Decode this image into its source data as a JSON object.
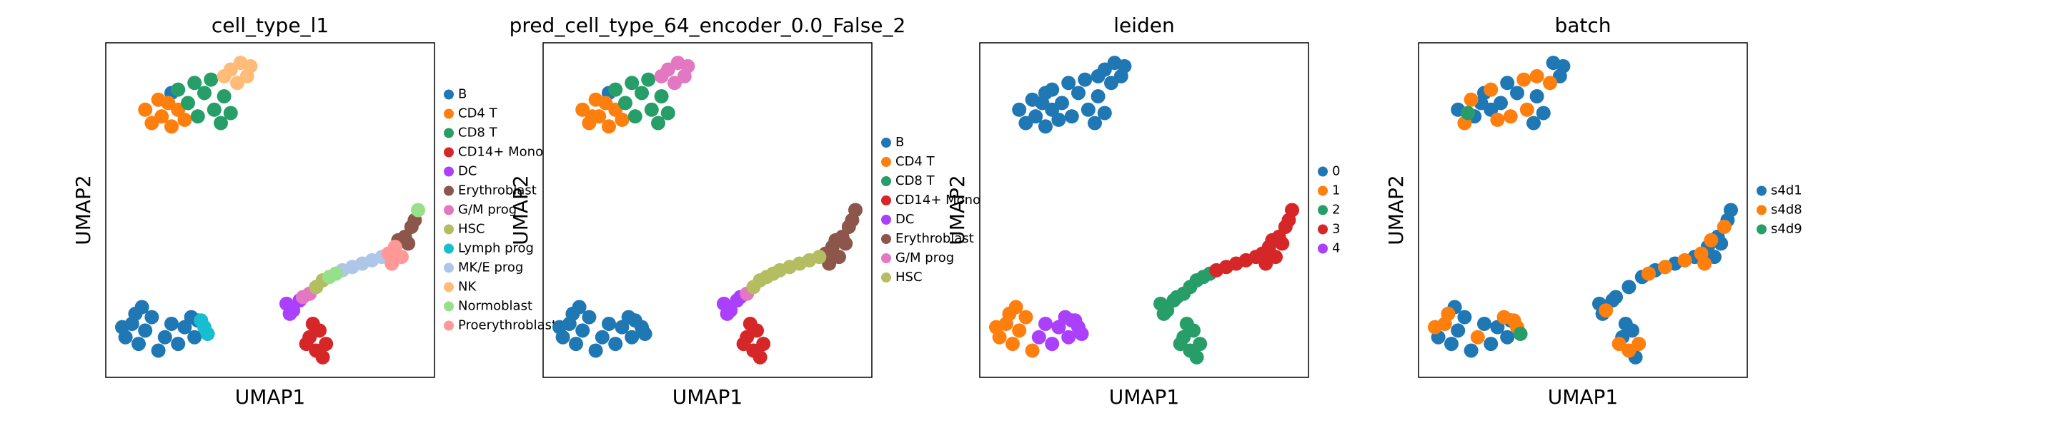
{
  "chart_data": [
    {
      "type": "scatter",
      "title": "cell_type_l1",
      "xlabel": "UMAP1",
      "ylabel": "UMAP2",
      "xlim": [
        0,
        100
      ],
      "ylim": [
        0,
        100
      ],
      "series": [
        {
          "name": "B",
          "color": "#1f77b4",
          "x": [
            20,
            6,
            8,
            10,
            12,
            9,
            14,
            18,
            22,
            24,
            27,
            26,
            20,
            16,
            28,
            5,
            11
          ],
          "y": [
            85,
            12,
            16,
            10,
            14,
            19,
            18,
            12,
            10,
            15,
            12,
            18,
            16,
            8,
            17,
            15,
            21
          ]
        },
        {
          "name": "CD4 T",
          "color": "#ff7f0e",
          "x": [
            12,
            14,
            17,
            20,
            22,
            16,
            19,
            24
          ],
          "y": [
            80,
            76,
            78,
            75,
            80,
            83,
            82,
            77
          ]
        },
        {
          "name": "CD8 T",
          "color": "#279e68",
          "x": [
            25,
            28,
            30,
            33,
            36,
            27,
            32,
            38,
            22,
            35
          ],
          "y": [
            82,
            78,
            85,
            80,
            84,
            88,
            89,
            79,
            86,
            76
          ]
        },
        {
          "name": "CD14+ Mono",
          "color": "#d62728",
          "x": [
            62,
            64,
            66,
            65,
            67,
            63,
            61
          ],
          "y": [
            12,
            8,
            6,
            14,
            10,
            16,
            10
          ]
        },
        {
          "name": "DC",
          "color": "#aa40fc",
          "x": [
            55,
            57,
            59,
            56
          ],
          "y": [
            22,
            20,
            23,
            19
          ]
        },
        {
          "name": "Erythroblast",
          "color": "#8c564b",
          "x": [
            91,
            93,
            92,
            94,
            89
          ],
          "y": [
            42,
            45,
            40,
            47,
            41
          ]
        },
        {
          "name": "G/M prog",
          "color": "#e377c2",
          "x": [
            60,
            62
          ],
          "y": [
            24,
            25
          ]
        },
        {
          "name": "HSC",
          "color": "#b5bd61",
          "x": [
            64,
            66
          ],
          "y": [
            27,
            29
          ]
        },
        {
          "name": "Lymph prog",
          "color": "#17becf",
          "x": [
            30,
            31,
            29
          ],
          "y": [
            15,
            13,
            17
          ]
        },
        {
          "name": "MK/E prog",
          "color": "#aec7e8",
          "x": [
            72,
            75,
            78,
            81,
            84
          ],
          "y": [
            32,
            33,
            34,
            35,
            36
          ]
        },
        {
          "name": "NK",
          "color": "#ffbb78",
          "x": [
            38,
            41,
            43,
            40,
            44,
            36
          ],
          "y": [
            92,
            94,
            90,
            88,
            93,
            90
          ]
        },
        {
          "name": "Normoblast",
          "color": "#98df8a",
          "x": [
            68,
            70,
            95
          ],
          "y": [
            30,
            31,
            50
          ]
        },
        {
          "name": "Proerythroblast",
          "color": "#ff9896",
          "x": [
            86,
            88,
            90,
            87
          ],
          "y": [
            37,
            39,
            36,
            34
          ]
        }
      ]
    },
    {
      "type": "scatter",
      "title": "pred_cell_type_64_encoder_0.0_False_2",
      "xlabel": "UMAP1",
      "ylabel": "UMAP2",
      "xlim": [
        0,
        100
      ],
      "ylim": [
        0,
        100
      ],
      "series": [
        {
          "name": "B",
          "color": "#1f77b4",
          "x": [
            20,
            6,
            8,
            10,
            12,
            9,
            14,
            18,
            22,
            24,
            27,
            26,
            20,
            16,
            28,
            5,
            11,
            30,
            31
          ],
          "y": [
            85,
            12,
            16,
            10,
            14,
            19,
            18,
            12,
            10,
            15,
            12,
            18,
            16,
            8,
            17,
            15,
            21,
            15,
            13
          ]
        },
        {
          "name": "CD4 T",
          "color": "#ff7f0e",
          "x": [
            12,
            14,
            17,
            20,
            22,
            16,
            19,
            24,
            15
          ],
          "y": [
            80,
            76,
            78,
            75,
            80,
            83,
            82,
            77,
            78
          ]
        },
        {
          "name": "CD8 T",
          "color": "#279e68",
          "x": [
            25,
            28,
            30,
            33,
            36,
            27,
            32,
            38,
            22,
            35
          ],
          "y": [
            82,
            78,
            85,
            80,
            84,
            88,
            89,
            79,
            86,
            76
          ]
        },
        {
          "name": "CD14+ Mono",
          "color": "#d62728",
          "x": [
            62,
            64,
            66,
            65,
            67,
            63,
            61
          ],
          "y": [
            12,
            8,
            6,
            14,
            10,
            16,
            10
          ]
        },
        {
          "name": "DC",
          "color": "#aa40fc",
          "x": [
            55,
            57,
            59,
            56,
            60
          ],
          "y": [
            22,
            20,
            23,
            19,
            24
          ]
        },
        {
          "name": "Erythroblast",
          "color": "#8c564b",
          "x": [
            91,
            93,
            92,
            94,
            89,
            86,
            88,
            90,
            87,
            95
          ],
          "y": [
            42,
            45,
            40,
            47,
            41,
            37,
            39,
            36,
            34,
            50
          ]
        },
        {
          "name": "G/M prog",
          "color": "#e377c2",
          "x": [
            38,
            41,
            43,
            40,
            44,
            36,
            62
          ],
          "y": [
            92,
            94,
            90,
            88,
            93,
            90,
            25
          ]
        },
        {
          "name": "HSC",
          "color": "#b5bd61",
          "x": [
            64,
            66,
            68,
            70,
            72,
            75,
            78,
            81,
            84
          ],
          "y": [
            27,
            29,
            30,
            31,
            32,
            33,
            34,
            35,
            36
          ]
        }
      ]
    },
    {
      "type": "scatter",
      "title": "leiden",
      "xlabel": "UMAP1",
      "ylabel": "UMAP2",
      "xlim": [
        0,
        100
      ],
      "ylim": [
        0,
        100
      ],
      "series": [
        {
          "name": "0",
          "color": "#1f77b4",
          "x": [
            20,
            12,
            14,
            17,
            20,
            22,
            16,
            19,
            24,
            25,
            28,
            30,
            33,
            36,
            27,
            32,
            38,
            22,
            35,
            38,
            41,
            43,
            40,
            44,
            36
          ],
          "y": [
            85,
            80,
            76,
            78,
            75,
            80,
            83,
            82,
            77,
            82,
            78,
            85,
            80,
            84,
            88,
            89,
            79,
            86,
            76,
            92,
            94,
            90,
            88,
            93,
            90
          ]
        },
        {
          "name": "1",
          "color": "#ff7f0e",
          "x": [
            6,
            8,
            10,
            12,
            9,
            14,
            16,
            5,
            11
          ],
          "y": [
            12,
            16,
            10,
            14,
            19,
            18,
            8,
            15,
            21
          ]
        },
        {
          "name": "2",
          "color": "#279e68",
          "x": [
            62,
            64,
            66,
            65,
            67,
            63,
            61,
            55,
            57,
            59,
            56,
            60,
            62,
            64,
            66,
            68,
            70
          ],
          "y": [
            12,
            8,
            6,
            14,
            10,
            16,
            10,
            22,
            20,
            23,
            19,
            24,
            25,
            27,
            29,
            30,
            31
          ]
        },
        {
          "name": "3",
          "color": "#d62728",
          "x": [
            72,
            75,
            78,
            81,
            84,
            86,
            88,
            90,
            87,
            91,
            93,
            92,
            94,
            89,
            95
          ],
          "y": [
            32,
            33,
            34,
            35,
            36,
            37,
            39,
            36,
            34,
            42,
            45,
            40,
            47,
            41,
            50
          ]
        },
        {
          "name": "4",
          "color": "#aa40fc",
          "x": [
            18,
            22,
            24,
            27,
            26,
            20,
            28,
            30,
            31,
            29
          ],
          "y": [
            12,
            10,
            15,
            12,
            18,
            16,
            17,
            15,
            13,
            17
          ]
        }
      ]
    },
    {
      "type": "scatter",
      "title": "batch",
      "xlabel": "UMAP1",
      "ylabel": "UMAP2",
      "xlim": [
        0,
        100
      ],
      "ylim": [
        0,
        100
      ],
      "series": [
        {
          "name": "s4d1",
          "color": "#1f77b4",
          "x": [
            20,
            12,
            17,
            22,
            19,
            25,
            30,
            36,
            27,
            38,
            35,
            41,
            43,
            44,
            6,
            10,
            12,
            14,
            22,
            24,
            27,
            20,
            16,
            28,
            11,
            62,
            66,
            65,
            63,
            55,
            59,
            56,
            60,
            64,
            68,
            72,
            78,
            84,
            88,
            90,
            91,
            92,
            94,
            95
          ],
          "y": [
            85,
            80,
            78,
            80,
            82,
            82,
            85,
            84,
            88,
            79,
            76,
            94,
            90,
            93,
            12,
            10,
            14,
            18,
            10,
            15,
            12,
            16,
            8,
            17,
            21,
            12,
            6,
            14,
            16,
            22,
            23,
            19,
            24,
            27,
            30,
            32,
            34,
            36,
            39,
            36,
            42,
            40,
            47,
            50
          ]
        },
        {
          "name": "s4d8",
          "color": "#ff7f0e",
          "x": [
            14,
            16,
            24,
            28,
            33,
            32,
            22,
            40,
            36,
            8,
            9,
            18,
            26,
            5,
            30,
            29,
            64,
            67,
            61,
            57,
            70,
            75,
            81,
            86,
            87,
            93,
            89
          ],
          "y": [
            76,
            83,
            77,
            78,
            80,
            89,
            86,
            88,
            90,
            16,
            19,
            12,
            18,
            15,
            15,
            17,
            8,
            10,
            10,
            20,
            31,
            33,
            35,
            37,
            34,
            45,
            41
          ]
        },
        {
          "name": "s4d9",
          "color": "#279e68",
          "x": [
            31,
            15
          ],
          "y": [
            13,
            79
          ]
        }
      ]
    }
  ]
}
